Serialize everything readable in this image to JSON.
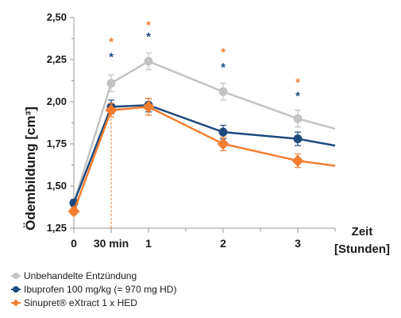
{
  "chart_data": {
    "type": "line",
    "ylabel": "Ödembildung [cm³]",
    "xlabel_line1": "Zeit",
    "xlabel_line2": "[Stunden]",
    "x_tick_labels": [
      "0",
      "30 min",
      "1",
      "2",
      "3"
    ],
    "x_ticks": [
      0,
      0.5,
      1,
      2,
      3
    ],
    "y_ticks": [
      "1,25",
      "1,50",
      "1,75",
      "2,00",
      "2,25",
      "2,50"
    ],
    "ylim": [
      1.25,
      2.5
    ],
    "xlim": [
      0,
      3.5
    ],
    "series": [
      {
        "name": "Unbehandelte Entzündung",
        "color": "#c3c3c3",
        "marker": "circle",
        "x": [
          0,
          0.5,
          1,
          2,
          3,
          3.5
        ],
        "y": [
          1.4,
          2.11,
          2.24,
          2.06,
          1.9,
          1.84
        ],
        "err": [
          0.02,
          0.05,
          0.05,
          0.05,
          0.05,
          null
        ]
      },
      {
        "name": "Ibuprofen 100 mg/kg (= 970 mg HD)",
        "color": "#1e4a7e",
        "marker": "circle",
        "x": [
          0,
          0.5,
          1,
          2,
          3,
          3.5
        ],
        "y": [
          1.4,
          1.97,
          1.98,
          1.82,
          1.78,
          1.74
        ],
        "err": [
          0.02,
          0.04,
          0.04,
          0.04,
          0.04,
          null
        ]
      },
      {
        "name": "Sinupret® eXtract 1 x HED",
        "color": "#f47d2e",
        "marker": "diamond",
        "x": [
          0,
          0.5,
          1,
          2,
          3,
          3.5
        ],
        "y": [
          1.35,
          1.95,
          1.97,
          1.75,
          1.65,
          1.62
        ],
        "err": [
          0.02,
          0.04,
          0.05,
          0.04,
          0.04,
          null
        ]
      }
    ],
    "annotations": [
      {
        "text": "*",
        "x": 0.5,
        "y": 2.37,
        "color": "#f47d2e"
      },
      {
        "text": "*",
        "x": 0.5,
        "y": 2.28,
        "color": "#1e4a7e"
      },
      {
        "text": "*",
        "x": 1,
        "y": 2.47,
        "color": "#f47d2e"
      },
      {
        "text": "*",
        "x": 1,
        "y": 2.4,
        "color": "#1e4a7e"
      },
      {
        "text": "*",
        "x": 2,
        "y": 2.31,
        "color": "#f47d2e"
      },
      {
        "text": "*",
        "x": 2,
        "y": 2.22,
        "color": "#1e4a7e"
      },
      {
        "text": "*",
        "x": 3,
        "y": 2.13,
        "color": "#f47d2e"
      },
      {
        "text": "*",
        "x": 3,
        "y": 2.05,
        "color": "#1e4a7e"
      }
    ],
    "legend_position": "bottom-left",
    "grid": false
  }
}
